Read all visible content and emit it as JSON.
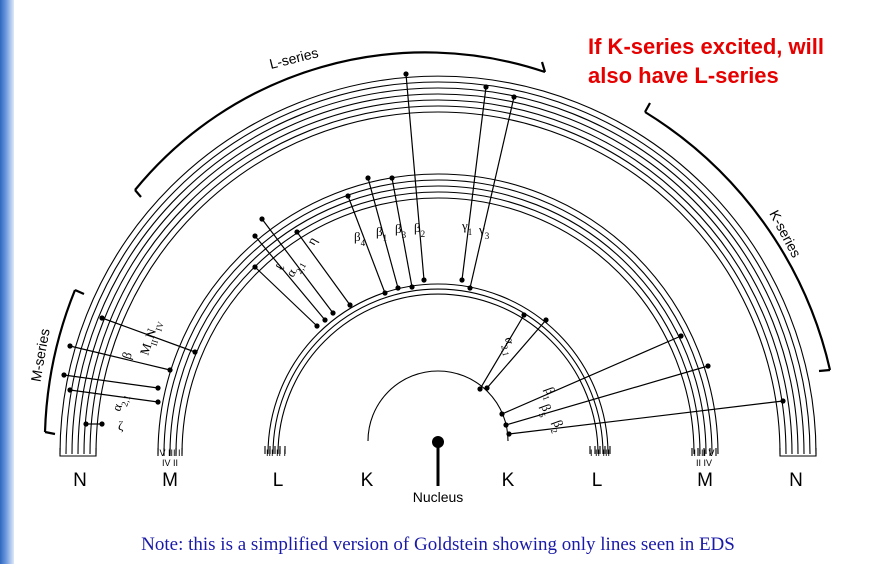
{
  "callout": {
    "line1": "If K-series excited, will",
    "line2": "also have L-series"
  },
  "note": "Note:  this is a simplified version of Goldstein showing only lines seen in EDS",
  "nucleus_label": "Nucleus",
  "shells": {
    "n_left": "N",
    "m_left": "M",
    "l_left": "L",
    "k_left": "K",
    "k_right": "K",
    "l_right": "L",
    "m_right": "M",
    "n_right": "N"
  },
  "subshells": {
    "m_left_top": "V III I",
    "m_left_bottom": "IV II",
    "l_left": "III II I",
    "l_right": "I II III",
    "m_right_top": "I III V",
    "m_right_bottom": "II IV"
  },
  "series": {
    "l": "L-series",
    "k": "K-series",
    "m": "M-series"
  },
  "line_labels": {
    "m_zeta": "ζ",
    "m_alpha": "α",
    "m_alpha_sub": "2,1",
    "m_beta": "β",
    "m_mn": "M",
    "m_mn_sub": "II",
    "m_n": "N",
    "m_n_sub": "IV",
    "l_ell": "ℓ",
    "l_alpha": "α",
    "l_alpha_sub": "2,1",
    "l_eta": "η",
    "l_beta4": "β",
    "l_beta4_sub": "4",
    "l_beta1": "β",
    "l_beta1_sub": "1",
    "l_beta3": "β",
    "l_beta3_sub": "3",
    "l_beta2": "β",
    "l_beta2_sub": "2",
    "l_gamma1": "γ",
    "l_gamma1_sub": "1",
    "l_gamma3": "γ",
    "l_gamma3_sub": "3",
    "k_alpha": "α",
    "k_alpha_sub": "2,1",
    "k_beta1": "β",
    "k_beta1_sub": "1",
    "k_beta5": "β",
    "k_beta5_sub": "5",
    "k_beta2": "β",
    "k_beta2_sub": "2"
  },
  "colors": {
    "callout": "#e60000",
    "note": "#1a1aa8",
    "edge": "#2f68c0"
  }
}
